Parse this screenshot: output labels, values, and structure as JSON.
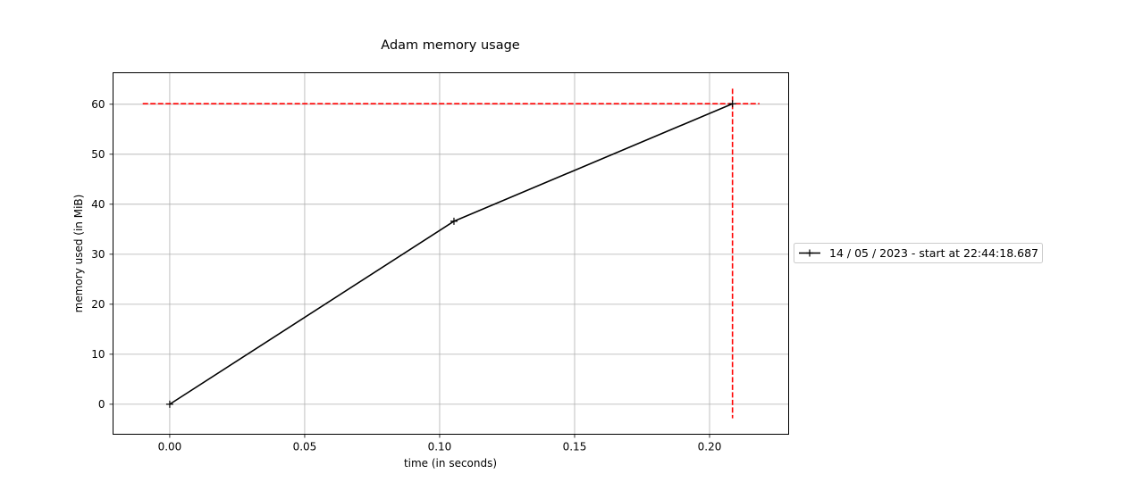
{
  "chart_data": {
    "type": "line",
    "title": "Adam memory usage",
    "xlabel": "time (in seconds)",
    "ylabel": "memory used (in MiB)",
    "xlim": [
      -0.021,
      0.2293
    ],
    "ylim": [
      -6.0,
      66.3
    ],
    "xticks": [
      0.0,
      0.05,
      0.1,
      0.15,
      0.2
    ],
    "xtick_labels": [
      "0.00",
      "0.05",
      "0.10",
      "0.15",
      "0.20"
    ],
    "yticks": [
      0,
      10,
      20,
      30,
      40,
      50,
      60
    ],
    "ytick_labels": [
      "0",
      "10",
      "20",
      "30",
      "40",
      "50",
      "60"
    ],
    "grid": true,
    "legend_position": "outside-right",
    "series": [
      {
        "name": "14 / 05 / 2023 - start at 22:44:18.687",
        "color": "#000000",
        "marker": "plus",
        "x": [
          0.0,
          0.1053,
          0.2085
        ],
        "y": [
          0.0,
          36.6,
          60.1
        ]
      }
    ],
    "reference_lines": [
      {
        "orientation": "horizontal",
        "value": 60.1,
        "from": -0.01,
        "to": 0.2185,
        "color": "#ff0000",
        "style": "dashed"
      },
      {
        "orientation": "vertical",
        "value": 0.2085,
        "from": -2.8,
        "to": 63.1,
        "color": "#ff0000",
        "style": "dashed"
      }
    ]
  }
}
